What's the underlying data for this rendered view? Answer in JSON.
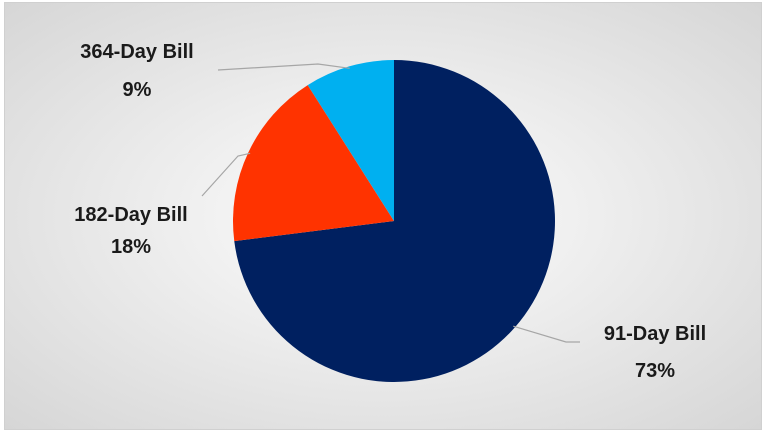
{
  "chart_data": {
    "type": "pie",
    "categories": [
      "91-Day Bill",
      "182-Day Bill",
      "364-Day Bill"
    ],
    "values": [
      73,
      18,
      9
    ],
    "value_labels": [
      "73%",
      "18%",
      "9%"
    ],
    "colors": [
      "#002060",
      "#ff3300",
      "#00b0f0"
    ],
    "start_angle_deg": 0,
    "direction": "clockwise",
    "legend": "none",
    "data_labels": "outside with leader lines"
  }
}
